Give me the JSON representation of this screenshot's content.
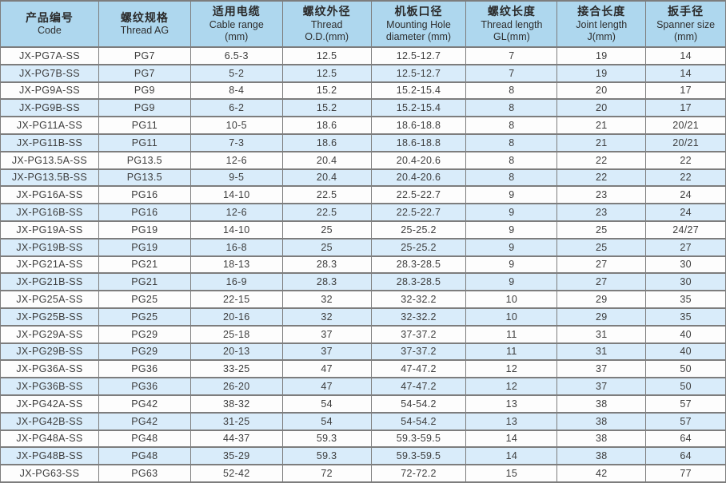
{
  "colors": {
    "header_bg": "#aed7ee",
    "row_white_bg": "#fdfdfd",
    "row_blue_bg": "#d9ecfa",
    "border": "#7d7d7d",
    "text": "#3d3d3d"
  },
  "table": {
    "columns": [
      {
        "zh": "产品编号",
        "en": [
          "Code"
        ],
        "width_pct": 13.55
      },
      {
        "zh": "螺纹规格",
        "en": [
          "Thread  AG"
        ],
        "width_pct": 12.67
      },
      {
        "zh": "适用电缆",
        "en": [
          "Cable range",
          "(mm)"
        ],
        "width_pct": 12.67
      },
      {
        "zh": "螺纹外径",
        "en": [
          "Thread",
          "O.D.(mm)"
        ],
        "width_pct": 12.22
      },
      {
        "zh": "机板口径",
        "en": [
          "Mounting Hole",
          "diameter (mm)"
        ],
        "width_pct": 13.11
      },
      {
        "zh": "螺纹长度",
        "en": [
          "Thread length",
          "GL(mm)"
        ],
        "width_pct": 12.56
      },
      {
        "zh": "接合长度",
        "en": [
          "Joint length",
          "J(mm)"
        ],
        "width_pct": 12.22
      },
      {
        "zh": "扳手径",
        "en": [
          "Spanner size",
          "(mm)"
        ],
        "width_pct": 11.0
      }
    ],
    "rows": [
      [
        "JX-PG7A-SS",
        "PG7",
        "6.5-3",
        "12.5",
        "12.5-12.7",
        "7",
        "19",
        "14"
      ],
      [
        "JX-PG7B-SS",
        "PG7",
        "5-2",
        "12.5",
        "12.5-12.7",
        "7",
        "19",
        "14"
      ],
      [
        "JX-PG9A-SS",
        "PG9",
        "8-4",
        "15.2",
        "15.2-15.4",
        "8",
        "20",
        "17"
      ],
      [
        "JX-PG9B-SS",
        "PG9",
        "6-2",
        "15.2",
        "15.2-15.4",
        "8",
        "20",
        "17"
      ],
      [
        "JX-PG11A-SS",
        "PG11",
        "10-5",
        "18.6",
        "18.6-18.8",
        "8",
        "21",
        "20/21"
      ],
      [
        "JX-PG11B-SS",
        "PG11",
        "7-3",
        "18.6",
        "18.6-18.8",
        "8",
        "21",
        "20/21"
      ],
      [
        "JX-PG13.5A-SS",
        "PG13.5",
        "12-6",
        "20.4",
        "20.4-20.6",
        "8",
        "22",
        "22"
      ],
      [
        "JX-PG13.5B-SS",
        "PG13.5",
        "9-5",
        "20.4",
        "20.4-20.6",
        "8",
        "22",
        "22"
      ],
      [
        "JX-PG16A-SS",
        "PG16",
        "14-10",
        "22.5",
        "22.5-22.7",
        "9",
        "23",
        "24"
      ],
      [
        "JX-PG16B-SS",
        "PG16",
        "12-6",
        "22.5",
        "22.5-22.7",
        "9",
        "23",
        "24"
      ],
      [
        "JX-PG19A-SS",
        "PG19",
        "14-10",
        "25",
        "25-25.2",
        "9",
        "25",
        "24/27"
      ],
      [
        "JX-PG19B-SS",
        "PG19",
        "16-8",
        "25",
        "25-25.2",
        "9",
        "25",
        "27"
      ],
      [
        "JX-PG21A-SS",
        "PG21",
        "18-13",
        "28.3",
        "28.3-28.5",
        "9",
        "27",
        "30"
      ],
      [
        "JX-PG21B-SS",
        "PG21",
        "16-9",
        "28.3",
        "28.3-28.5",
        "9",
        "27",
        "30"
      ],
      [
        "JX-PG25A-SS",
        "PG25",
        "22-15",
        "32",
        "32-32.2",
        "10",
        "29",
        "35"
      ],
      [
        "JX-PG25B-SS",
        "PG25",
        "20-16",
        "32",
        "32-32.2",
        "10",
        "29",
        "35"
      ],
      [
        "JX-PG29A-SS",
        "PG29",
        "25-18",
        "37",
        "37-37.2",
        "11",
        "31",
        "40"
      ],
      [
        "JX-PG29B-SS",
        "PG29",
        "20-13",
        "37",
        "37-37.2",
        "11",
        "31",
        "40"
      ],
      [
        "JX-PG36A-SS",
        "PG36",
        "33-25",
        "47",
        "47-47.2",
        "12",
        "37",
        "50"
      ],
      [
        "JX-PG36B-SS",
        "PG36",
        "26-20",
        "47",
        "47-47.2",
        "12",
        "37",
        "50"
      ],
      [
        "JX-PG42A-SS",
        "PG42",
        "38-32",
        "54",
        "54-54.2",
        "13",
        "38",
        "57"
      ],
      [
        "JX-PG42B-SS",
        "PG42",
        "31-25",
        "54",
        "54-54.2",
        "13",
        "38",
        "57"
      ],
      [
        "JX-PG48A-SS",
        "PG48",
        "44-37",
        "59.3",
        "59.3-59.5",
        "14",
        "38",
        "64"
      ],
      [
        "JX-PG48B-SS",
        "PG48",
        "35-29",
        "59.3",
        "59.3-59.5",
        "14",
        "38",
        "64"
      ],
      [
        "JX-PG63-SS",
        "PG63",
        "52-42",
        "72",
        "72-72.2",
        "15",
        "42",
        "77"
      ]
    ]
  }
}
